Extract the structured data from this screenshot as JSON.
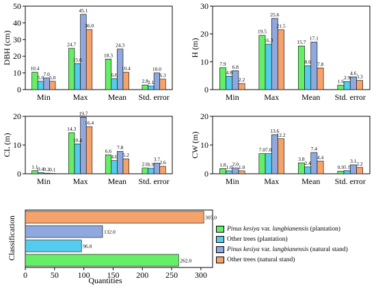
{
  "legend": [
    {
      "italic": "Pinus kesiya",
      "rest": " var. ",
      "italic2": "langbianensis",
      "suffix": " (plantation)",
      "color": "#66EE66"
    },
    {
      "italic": "",
      "rest": "Other trees (plantation)",
      "italic2": "",
      "suffix": "",
      "color": "#55CCEE"
    },
    {
      "italic": "Pinus kesiya",
      "rest": " var. ",
      "italic2": "langbianensis",
      "suffix": " (natural stand)",
      "color": "#8FA8DD"
    },
    {
      "italic": "",
      "rest": "Other trees (natural stand)",
      "italic2": "",
      "suffix": "",
      "color": "#F5A36B"
    }
  ],
  "colors": [
    "#66EE66",
    "#55CCEE",
    "#8FA8DD",
    "#F5A36B"
  ],
  "chart_data": [
    {
      "type": "bar",
      "ylabel": "DBH (cm)",
      "ylim": [
        0,
        50
      ],
      "yticks": [
        0,
        10,
        20,
        30,
        40,
        50
      ],
      "categories": [
        "Min",
        "Max",
        "Mean",
        "Std. error"
      ],
      "series": [
        {
          "values": [
            10.4,
            24.7,
            18.3,
            2.8
          ]
        },
        {
          "values": [
            5.0,
            15.6,
            6.6,
            2.1
          ]
        },
        {
          "values": [
            7.0,
            45.1,
            24.3,
            10.0
          ]
        },
        {
          "values": [
            5.0,
            36.0,
            10.4,
            6.3
          ]
        }
      ],
      "labels": [
        [
          "10.4",
          "24.7",
          "18.3",
          "2.8"
        ],
        [
          "5.0",
          "15.6",
          "6.6",
          "2.1"
        ],
        [
          "7.0",
          "45.1",
          "24.3",
          "10.0"
        ],
        [
          "5.0",
          "36.0",
          "10.4",
          "6.3"
        ]
      ]
    },
    {
      "type": "bar",
      "ylabel": "H (m)",
      "ylim": [
        0,
        30
      ],
      "yticks": [
        0,
        10,
        20,
        30
      ],
      "categories": [
        "Min",
        "Max",
        "Mean",
        "Std. error"
      ],
      "series": [
        {
          "values": [
            7.9,
            19.5,
            15.7,
            1.6
          ]
        },
        {
          "values": [
            4.8,
            16.3,
            8.6,
            2.9
          ]
        },
        {
          "values": [
            6.8,
            25.6,
            17.1,
            4.6
          ]
        },
        {
          "values": [
            2.2,
            21.5,
            7.8,
            3.3
          ]
        }
      ],
      "labels": [
        [
          "7.9",
          "19.5",
          "15.7",
          "1.6"
        ],
        [
          "4.8",
          "16.3",
          "8.6",
          "2.9"
        ],
        [
          "6.8",
          "25.6",
          "17.1",
          "4.6"
        ],
        [
          "2.2",
          "21.5",
          "7.8",
          "3.3"
        ]
      ]
    },
    {
      "type": "bar",
      "ylabel": "CL (m)",
      "ylim": [
        0,
        20
      ],
      "yticks": [
        0,
        10,
        20
      ],
      "categories": [
        "Min",
        "Max",
        "Mean",
        "Std. error"
      ],
      "series": [
        {
          "values": [
            1.1,
            14.3,
            6.6,
            2.0
          ]
        },
        {
          "values": [
            0.4,
            10.4,
            4.6,
            1.9
          ]
        },
        {
          "values": [
            0.2,
            19.7,
            7.8,
            3.7
          ]
        },
        {
          "values": [
            0.1,
            16.4,
            5.2,
            2.6
          ]
        }
      ],
      "labels": [
        [
          "1.1",
          "14.3",
          "6.6",
          "2.0"
        ],
        [
          "0.4",
          "10.4",
          "4.6",
          "1.9"
        ],
        [
          "0.2",
          "19.7",
          "7.8",
          "3.7"
        ],
        [
          "0.1",
          "16.4",
          "5.2",
          "2.6"
        ]
      ]
    },
    {
      "type": "bar",
      "ylabel": "CW (m)",
      "ylim": [
        0,
        20
      ],
      "yticks": [
        0,
        10,
        20
      ],
      "categories": [
        "Min",
        "Max",
        "Mean",
        "Std. error"
      ],
      "series": [
        {
          "values": [
            1.8,
            7.0,
            3.8,
            0.9
          ]
        },
        {
          "values": [
            1.0,
            7.0,
            2.4,
            1.1
          ]
        },
        {
          "values": [
            2.0,
            13.6,
            7.4,
            3.1
          ]
        },
        {
          "values": [
            1.0,
            12.2,
            4.4,
            2.2
          ]
        }
      ],
      "labels": [
        [
          "1.8",
          "7.0",
          "3.8",
          "0.9"
        ],
        [
          "1.0",
          "7.0",
          "2.4",
          "1.1"
        ],
        [
          "2.0",
          "13.6",
          "7.4",
          "3.1"
        ],
        [
          "1.0",
          "12.2",
          "4.4",
          "2.2"
        ]
      ]
    },
    {
      "type": "bar",
      "orientation": "horizontal",
      "ylabel": "Classification",
      "xlabel": "Quantities",
      "xlim": [
        0,
        320
      ],
      "xticks": [
        0,
        50,
        100,
        150,
        200,
        250,
        300
      ],
      "series": [
        {
          "value": 262.0,
          "label": "262.0"
        },
        {
          "value": 96.0,
          "label": "96.0"
        },
        {
          "value": 132.0,
          "label": "132.0"
        },
        {
          "value": 305.0,
          "label": "305.0"
        }
      ]
    }
  ]
}
